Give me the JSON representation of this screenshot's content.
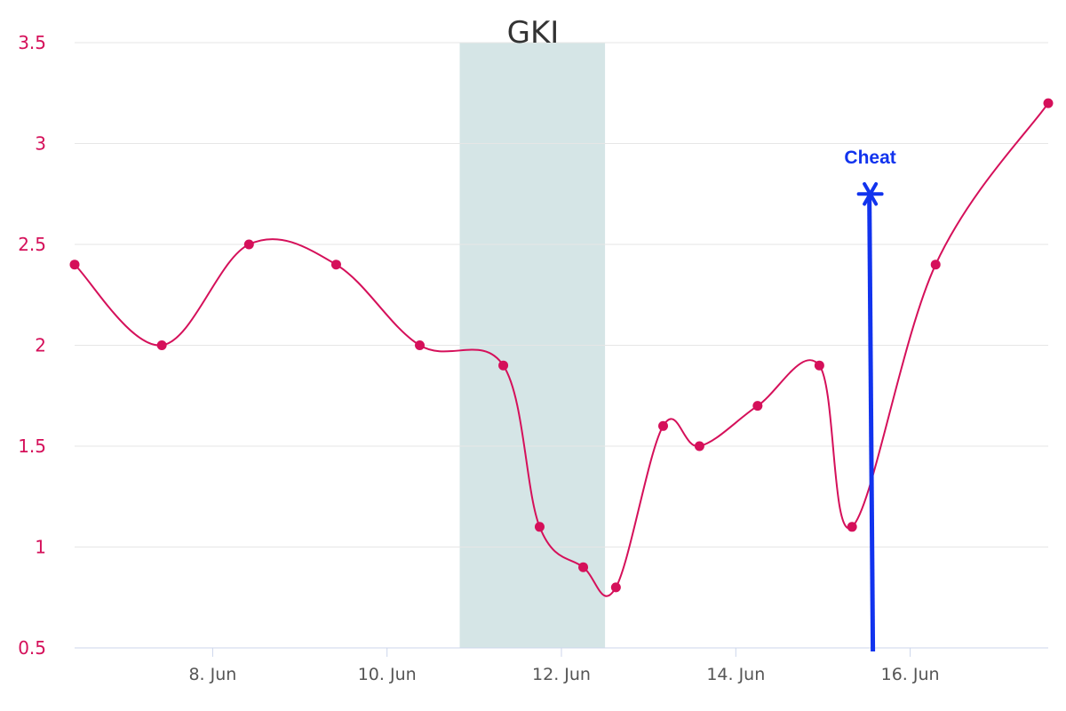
{
  "chart_data": {
    "type": "line",
    "title": "GKI",
    "xlabel": "",
    "ylabel": "",
    "ylim": [
      0.5,
      3.5
    ],
    "yticks": [
      "0.5",
      "1",
      "1.5",
      "2",
      "2.5",
      "3",
      "3.5"
    ],
    "xlim": [
      "2023-06-06T10:00",
      "2023-06-17T14:00"
    ],
    "xticks": [
      {
        "date": "2023-06-08",
        "label": "8. Jun"
      },
      {
        "date": "2023-06-10",
        "label": "10. Jun"
      },
      {
        "date": "2023-06-12",
        "label": "12. Jun"
      },
      {
        "date": "2023-06-14",
        "label": "14. Jun"
      },
      {
        "date": "2023-06-16",
        "label": "16. Jun"
      }
    ],
    "grid": true,
    "legend": "none",
    "series": [
      {
        "name": "",
        "color": "#d5105a",
        "x": [
          "2023-06-06T10:00",
          "2023-06-07T10:00",
          "2023-06-08T10:00",
          "2023-06-09T10:00",
          "2023-06-10T09:00",
          "2023-06-11T08:00",
          "2023-06-11T18:00",
          "2023-06-12T06:00",
          "2023-06-12T15:00",
          "2023-06-13T04:00",
          "2023-06-13T14:00",
          "2023-06-14T06:00",
          "2023-06-14T23:00",
          "2023-06-15T08:00",
          "2023-06-16T07:00",
          "2023-06-17T14:00"
        ],
        "y": [
          2.4,
          2.0,
          2.5,
          2.4,
          2.0,
          1.9,
          1.1,
          0.9,
          0.8,
          1.6,
          1.5,
          1.7,
          1.9,
          1.1,
          2.4,
          3.2
        ]
      }
    ],
    "plot_band": {
      "from": "2023-06-10T20:00",
      "to": "2023-06-12T12:00",
      "color": "#d5e5e6"
    },
    "annotation": {
      "label": "Cheat",
      "x": "2023-06-15T13:00",
      "y_top": 2.75,
      "y_bottom": 0.5,
      "color": "#1133ee"
    },
    "colors": {
      "axis_text": "#d5105a",
      "grid": "#e6e6e6",
      "axis_line": "#ccd6eb"
    }
  }
}
